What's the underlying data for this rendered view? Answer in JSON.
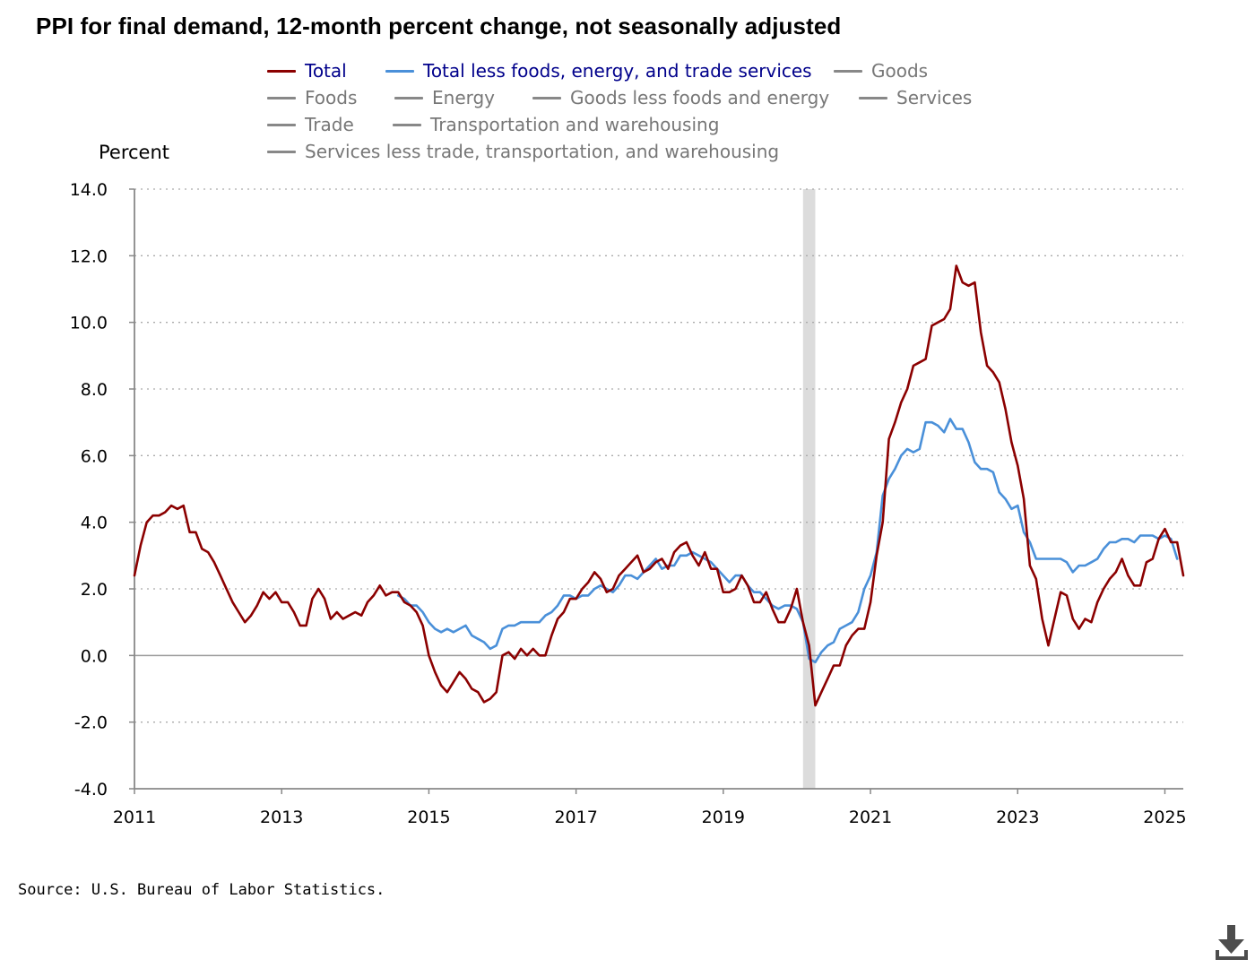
{
  "title": "PPI for final demand, 12-month percent change, not seasonally adjusted",
  "source": "Source: U.S. Bureau of Labor Statistics.",
  "colors": {
    "total": "#8b0000",
    "core": "#4a90d9",
    "inactive": "#888888",
    "recession": "#dcdcdc",
    "axis": "#888888",
    "grid": "#aaaaaa"
  },
  "legend": [
    [
      {
        "label": "Total",
        "active": true,
        "color": "#8b0000",
        "textColor": "#00008b"
      },
      {
        "label": "Total less foods, energy, and trade services",
        "active": true,
        "color": "#4a90d9",
        "textColor": "#00008b"
      },
      {
        "label": "Goods",
        "active": false
      }
    ],
    [
      {
        "label": "Foods",
        "active": false
      },
      {
        "label": "Energy",
        "active": false
      },
      {
        "label": "Goods less foods and energy",
        "active": false
      },
      {
        "label": "Services",
        "active": false
      }
    ],
    [
      {
        "label": "Trade",
        "active": false
      },
      {
        "label": "Transportation and warehousing",
        "active": false
      }
    ],
    [
      {
        "label": "Services less trade, transportation, and warehousing",
        "active": false
      }
    ]
  ],
  "chart_data": {
    "type": "line",
    "title": "PPI for final demand, 12-month percent change, not seasonally adjusted",
    "ylabel": "Percent",
    "xlabel": "",
    "ylim": [
      -4.0,
      14.0
    ],
    "yticks": [
      "14.0",
      "12.0",
      "10.0",
      "8.0",
      "6.0",
      "4.0",
      "2.0",
      "0.0",
      "-2.0",
      "-4.0"
    ],
    "xticks": [
      "2011",
      "2013",
      "2015",
      "2017",
      "2019",
      "2021",
      "2023",
      "2025"
    ],
    "xrange": [
      "2011-01",
      "2025-04"
    ],
    "grid": true,
    "recession": {
      "start": "2020-02",
      "end": "2020-04"
    },
    "series": [
      {
        "name": "Total",
        "start": "2011-01",
        "values": [
          2.4,
          3.3,
          4.0,
          4.2,
          4.2,
          4.3,
          4.5,
          4.4,
          4.5,
          3.7,
          3.7,
          3.2,
          3.1,
          2.8,
          2.4,
          2.0,
          1.6,
          1.3,
          1.0,
          1.2,
          1.5,
          1.9,
          1.7,
          1.9,
          1.6,
          1.6,
          1.3,
          0.9,
          0.9,
          1.7,
          2.0,
          1.7,
          1.1,
          1.3,
          1.1,
          1.2,
          1.3,
          1.2,
          1.6,
          1.8,
          2.1,
          1.8,
          1.9,
          1.9,
          1.6,
          1.5,
          1.3,
          0.9,
          0.0,
          -0.5,
          -0.9,
          -1.1,
          -0.8,
          -0.5,
          -0.7,
          -1.0,
          -1.1,
          -1.4,
          -1.3,
          -1.1,
          0.0,
          0.1,
          -0.1,
          0.2,
          0.0,
          0.2,
          0.0,
          0.0,
          0.6,
          1.1,
          1.3,
          1.7,
          1.7,
          2.0,
          2.2,
          2.5,
          2.3,
          1.9,
          2.0,
          2.4,
          2.6,
          2.8,
          3.0,
          2.5,
          2.6,
          2.8,
          2.9,
          2.6,
          3.1,
          3.3,
          3.4,
          3.0,
          2.7,
          3.1,
          2.6,
          2.6,
          1.9,
          1.9,
          2.0,
          2.4,
          2.1,
          1.6,
          1.6,
          1.9,
          1.4,
          1.0,
          1.0,
          1.4,
          2.0,
          1.0,
          0.3,
          -1.5,
          -1.1,
          -0.7,
          -0.3,
          -0.3,
          0.3,
          0.6,
          0.8,
          0.8,
          1.6,
          3.0,
          4.0,
          6.5,
          7.0,
          7.6,
          8.0,
          8.7,
          8.8,
          8.9,
          9.9,
          10.0,
          10.1,
          10.4,
          11.7,
          11.2,
          11.1,
          11.2,
          9.7,
          8.7,
          8.5,
          8.2,
          7.4,
          6.4,
          5.7,
          4.7,
          2.7,
          2.3,
          1.1,
          0.3,
          1.1,
          1.9,
          1.8,
          1.1,
          0.8,
          1.1,
          1.0,
          1.6,
          2.0,
          2.3,
          2.5,
          2.9,
          2.4,
          2.1,
          2.1,
          2.8,
          2.9,
          3.5,
          3.8,
          3.4,
          3.4,
          2.4
        ]
      },
      {
        "name": "Total less foods, energy, and trade services",
        "start": "2014-08",
        "values": [
          1.8,
          1.7,
          1.5,
          1.5,
          1.3,
          1.0,
          0.8,
          0.7,
          0.8,
          0.7,
          0.8,
          0.9,
          0.6,
          0.5,
          0.4,
          0.2,
          0.3,
          0.8,
          0.9,
          0.9,
          1.0,
          1.0,
          1.0,
          1.0,
          1.2,
          1.3,
          1.5,
          1.8,
          1.8,
          1.7,
          1.8,
          1.8,
          2.0,
          2.1,
          2.0,
          1.9,
          2.1,
          2.4,
          2.4,
          2.3,
          2.5,
          2.7,
          2.9,
          2.6,
          2.7,
          2.7,
          3.0,
          3.0,
          3.1,
          3.0,
          2.9,
          2.8,
          2.6,
          2.4,
          2.2,
          2.4,
          2.4,
          2.1,
          1.9,
          1.9,
          1.7,
          1.5,
          1.4,
          1.5,
          1.5,
          1.4,
          1.0,
          -0.1,
          -0.2,
          0.1,
          0.3,
          0.4,
          0.8,
          0.9,
          1.0,
          1.3,
          2.0,
          2.4,
          3.1,
          4.8,
          5.3,
          5.6,
          6.0,
          6.2,
          6.1,
          6.2,
          7.0,
          7.0,
          6.9,
          6.7,
          7.1,
          6.8,
          6.8,
          6.4,
          5.8,
          5.6,
          5.6,
          5.5,
          4.9,
          4.7,
          4.4,
          4.5,
          3.7,
          3.4,
          2.9,
          2.9,
          2.9,
          2.9,
          2.9,
          2.8,
          2.5,
          2.7,
          2.7,
          2.8,
          2.9,
          3.2,
          3.4,
          3.4,
          3.5,
          3.5,
          3.4,
          3.6,
          3.6,
          3.6,
          3.5,
          3.6,
          3.5,
          2.9
        ]
      }
    ]
  }
}
